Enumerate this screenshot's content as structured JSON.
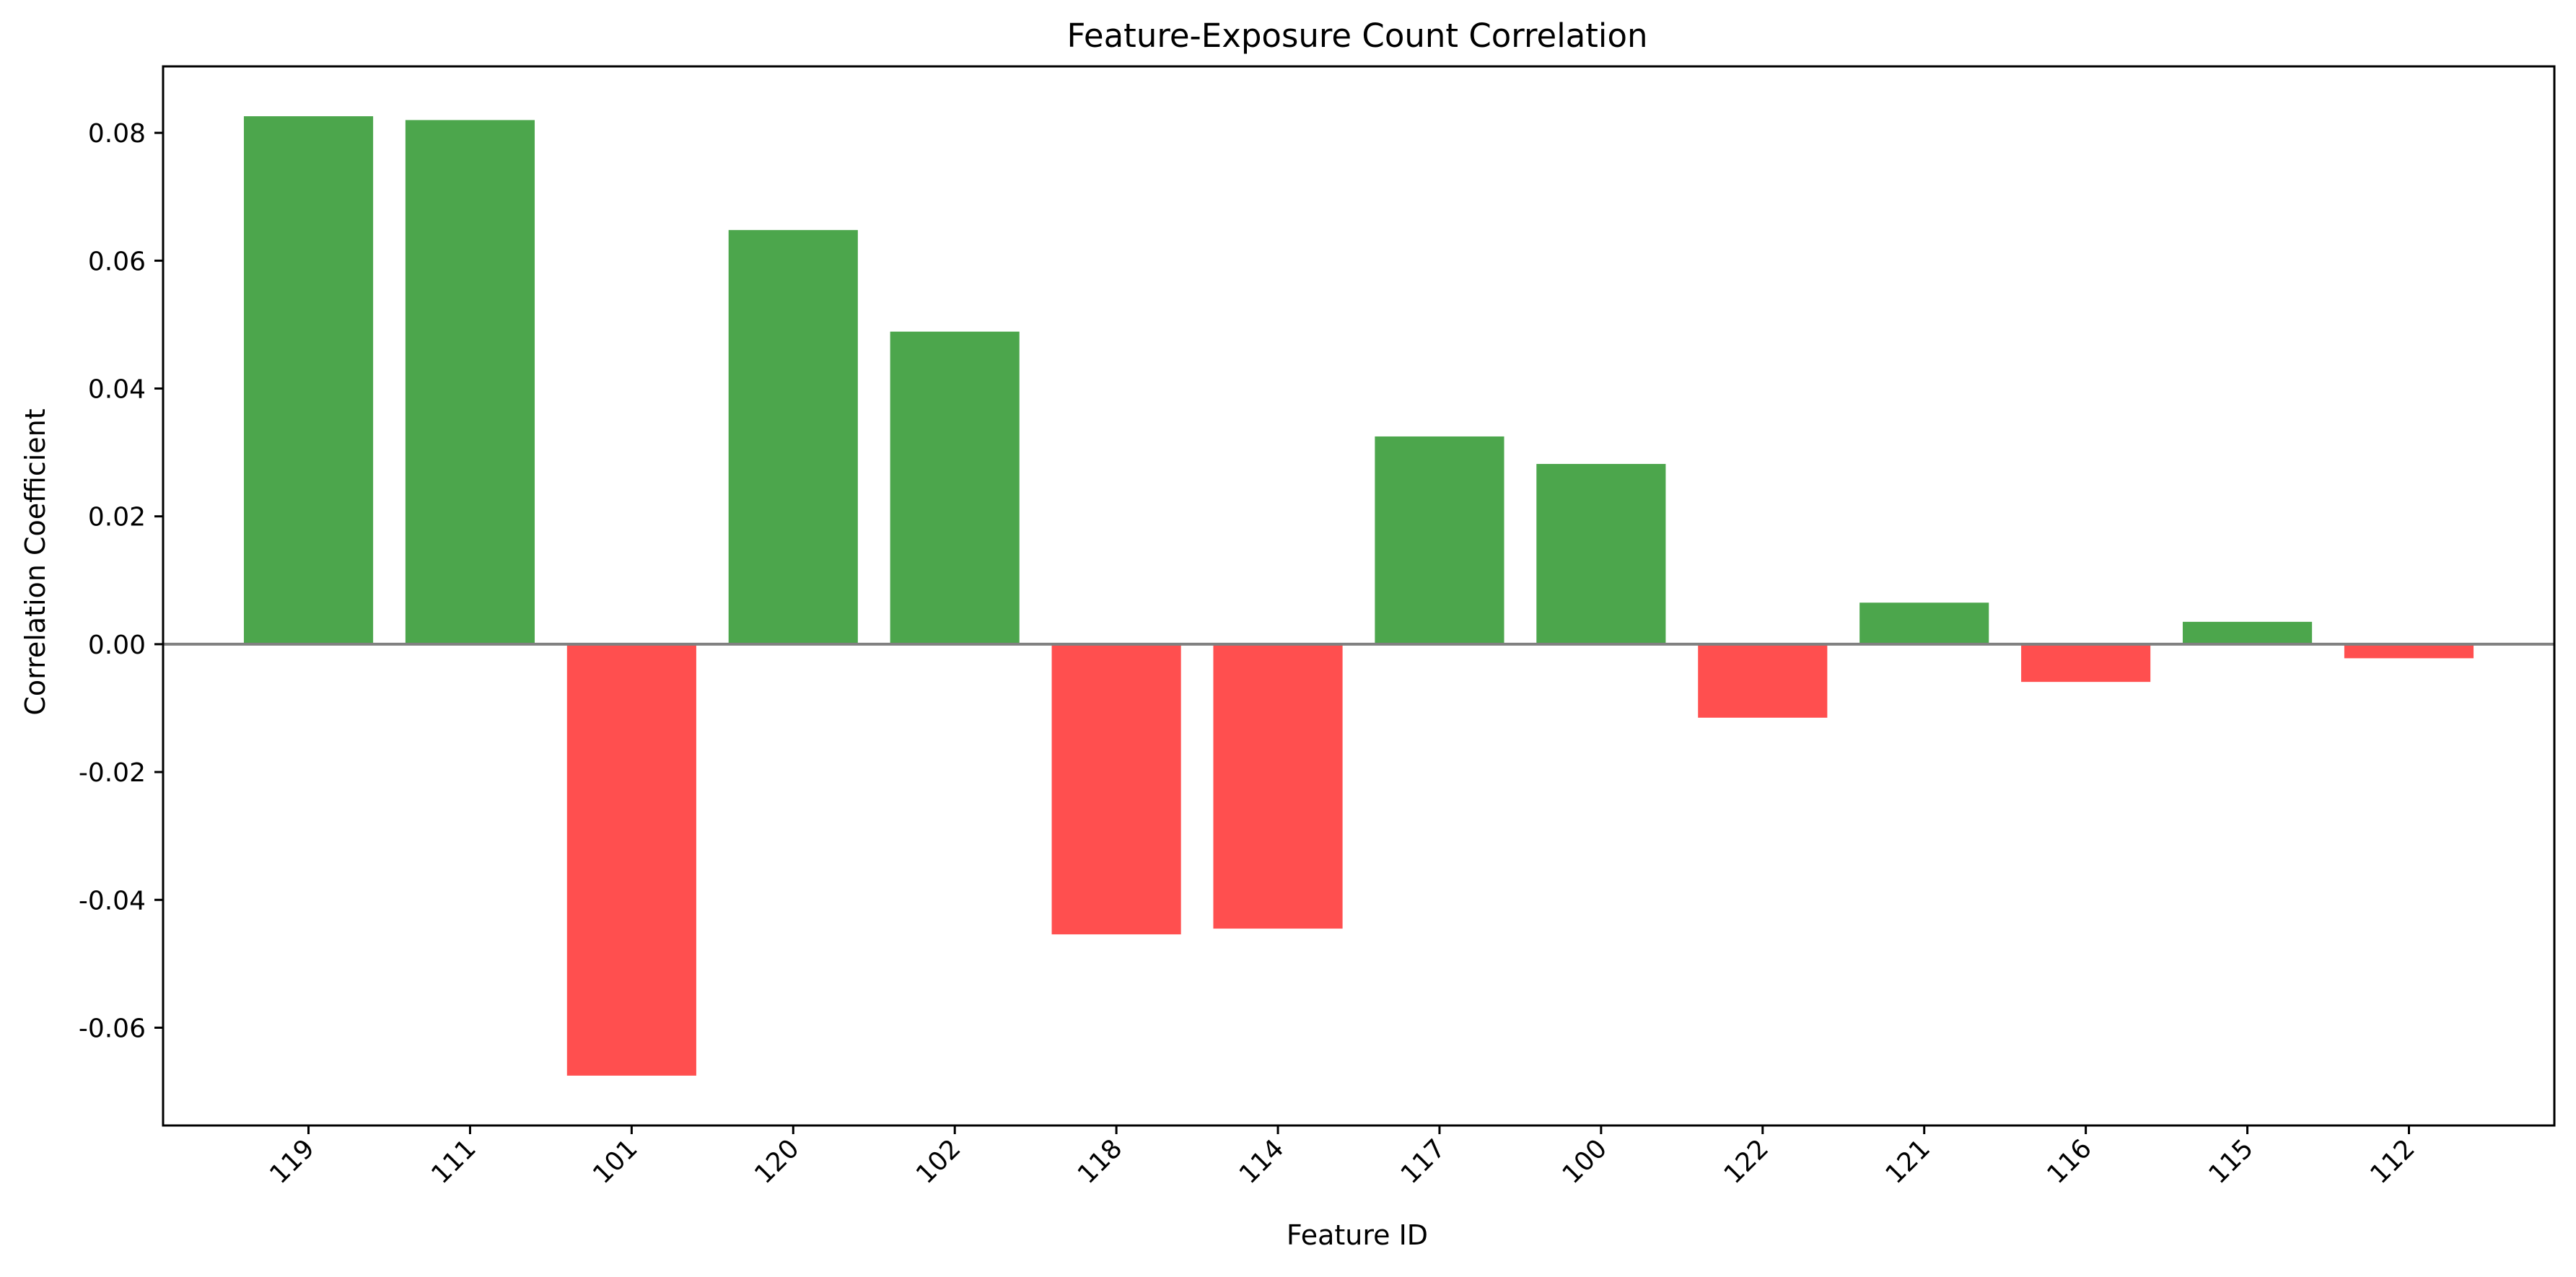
{
  "chart_data": {
    "type": "bar",
    "title": "Feature-Exposure Count Correlation",
    "xlabel": "Feature ID",
    "ylabel": "Correlation Coefficient",
    "categories": [
      "119",
      "111",
      "101",
      "120",
      "102",
      "118",
      "114",
      "117",
      "100",
      "122",
      "121",
      "116",
      "115",
      "112"
    ],
    "values": [
      0.0826,
      0.082,
      -0.0675,
      0.0648,
      0.0489,
      -0.0454,
      -0.0445,
      0.0325,
      0.0282,
      -0.0115,
      0.0065,
      -0.0059,
      0.0035,
      -0.0022
    ],
    "ylim": [
      -0.0753,
      0.0904
    ],
    "yticks": [
      -0.06,
      -0.04,
      -0.02,
      0.0,
      0.02,
      0.04,
      0.06,
      0.08
    ],
    "ytick_labels": [
      "-0.06",
      "-0.04",
      "-0.02",
      "0.00",
      "0.02",
      "0.04",
      "0.06",
      "0.08"
    ],
    "grid": false,
    "legend": "none",
    "zero_line": true,
    "colors": {
      "positive": "#4ca64c",
      "negative": "#ff4f4f",
      "zero_line": "#808080",
      "axes": "#000000"
    }
  }
}
